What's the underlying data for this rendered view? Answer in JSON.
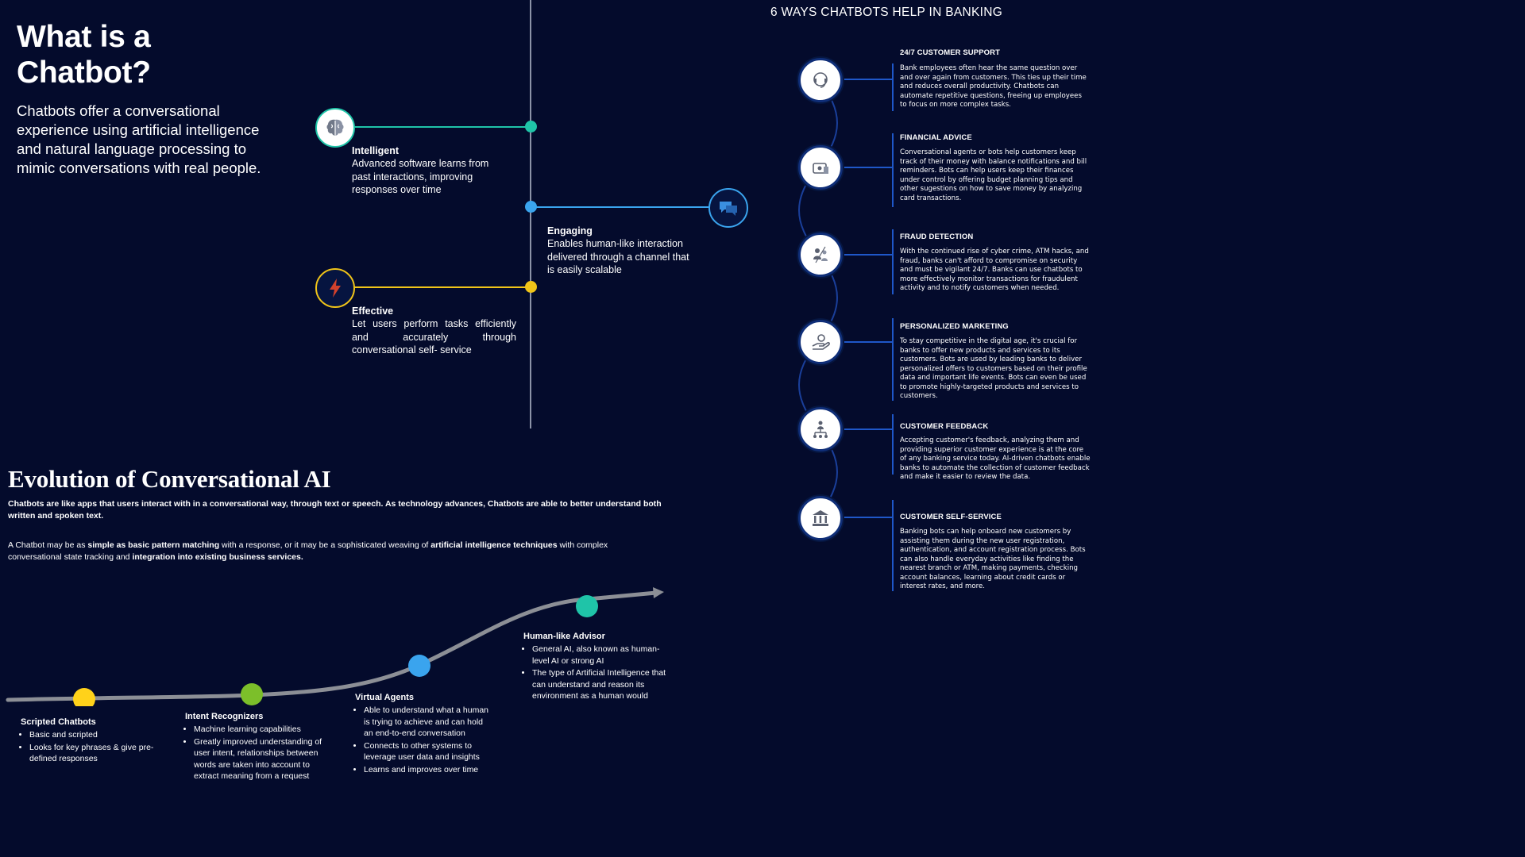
{
  "what": {
    "title": "What is a Chatbot?",
    "intro": "Chatbots offer a conversational experience using artificial intelligence and natural  language processing to mimic conversations  with real people."
  },
  "features": [
    {
      "title": "Intelligent",
      "desc": "Advanced software learns from past  interactions, improving responses over  time",
      "color": "#1fc4a8",
      "icon": "brain-icon"
    },
    {
      "title": "Engaging",
      "desc": "Enables human-like interaction delivered through a channel that is  easily scalable",
      "color": "#3aa4ee",
      "icon": "chat-bubbles-icon"
    },
    {
      "title": "Effective",
      "desc": "Let users perform tasks efficiently and accurately through conversational self- service",
      "color": "#f0c419",
      "icon": "lightning-icon"
    }
  ],
  "evolution": {
    "title": "Evolution of Conversational AI",
    "p1": "Chatbots are like apps that users interact with in a conversational way, through text or speech. As technology advances, Chatbots are able to better understand both written and spoken text.",
    "p2_a": "A Chatbot may be as ",
    "p2_b": "simple as basic pattern matching",
    "p2_c": " with a response, or it may be a sophisticated weaving of ",
    "p2_d": "artificial intelligence techniques",
    "p2_e": " with complex conversational state tracking and ",
    "p2_f": "integration into existing business services.",
    "stages": [
      {
        "title": "Scripted Chatbots",
        "color": "#ffd21a",
        "bullets": [
          "Basic and scripted",
          "Looks for key phrases & give pre-defined responses"
        ]
      },
      {
        "title": "Intent Recognizers",
        "color": "#7cbf2a",
        "bullets": [
          "Machine learning capabilities",
          "Greatly improved understanding of user intent, relationships between words are taken into account to extract meaning from a request"
        ]
      },
      {
        "title": "Virtual Agents",
        "color": "#3aa4ee",
        "bullets": [
          "Able to understand what a human is trying to achieve and can hold an end-to-end conversation",
          "Connects to other systems to leverage user data and insights",
          "Learns and improves over time"
        ]
      },
      {
        "title": "Human-like Advisor",
        "color": "#1fc4a8",
        "bullets": [
          "General AI, also known as human-level AI or strong AI",
          "The type of Artificial Intelligence that can understand and reason its environment as a human would"
        ]
      }
    ]
  },
  "ways": {
    "title": "6 WAYS CHATBOTS HELP IN BANKING",
    "items": [
      {
        "title": "24/7 CUSTOMER SUPPORT",
        "icon": "support-icon",
        "desc": "Bank employees often hear the same question over and over again from customers. This ties up their time and reduces overall productivity. Chatbots can automate repetitive questions, freeing up employees to focus on more complex tasks."
      },
      {
        "title": "FINANCIAL ADVICE",
        "icon": "wallet-icon",
        "desc": "Conversational agents or bots help customers keep track of their money with balance notifications and bill reminders. Bots can help users keep their finances under control by offering budget planning tips and other sugestions on how to save money by analyzing card transactions."
      },
      {
        "title": "FRAUD DETECTION",
        "icon": "fraud-icon",
        "desc": "With the continued rise of cyber crime, ATM hacks, and fraud, banks can't afford to compromise on security and must be vigilant 24/7. Banks can use chatbots to more effectively monitor transactions for fraudulent  activity  and to notify customers when needed."
      },
      {
        "title": "PERSONALIZED MARKETING",
        "icon": "hand-coin-icon",
        "desc": "To stay competitive in the digital age, it's crucial for banks to offer new products and services to its customers. Bots are used by leading banks to deliver personalized offers to customers based on their profile data and important life events. Bots can even be used to promote highly-targeted products and services to customers."
      },
      {
        "title": "CUSTOMER FEEDBACK",
        "icon": "feedback-icon",
        "desc": "Accepting customer's feedback, analyzing them and providing superior customer experience is at the core of any banking service today. AI-driven chatbots enable banks to automate the collection of customer feedback and make it easier to review the data."
      },
      {
        "title": "CUSTOMER SELF-SERVICE",
        "icon": "bank-icon",
        "desc": "Banking bots can help onboard new customers by assisting them during the new user registration, authentication, and account registration process. Bots can also handle everyday activities like finding the nearest branch or ATM, making payments, checking account balances, learning about credit cards or interest rates, and more."
      }
    ]
  }
}
